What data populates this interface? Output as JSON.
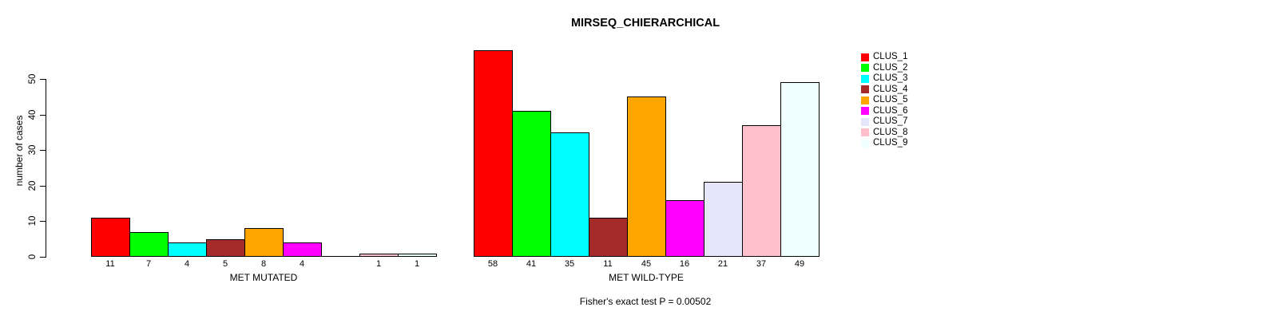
{
  "title": "MIRSEQ_CHIERARCHICAL",
  "chart_data": {
    "type": "bar",
    "title": "MIRSEQ_CHIERARCHICAL",
    "xlabel": "",
    "ylabel": "number of cases",
    "ylim": [
      0,
      50
    ],
    "yticks": [
      0,
      10,
      20,
      30,
      40,
      50
    ],
    "grid": false,
    "legend_position": "right",
    "series_labels": [
      "CLUS_1",
      "CLUS_2",
      "CLUS_3",
      "CLUS_4",
      "CLUS_5",
      "CLUS_6",
      "CLUS_7",
      "CLUS_8",
      "CLUS_9"
    ],
    "colors": [
      "#ff0000",
      "#00ff00",
      "#00ffff",
      "#a52a2a",
      "#ffa500",
      "#ff00ff",
      "#e6e6fa",
      "#ffc0cb",
      "#f0ffff"
    ],
    "groups": [
      {
        "label": "MET MUTATED",
        "values": [
          11,
          7,
          4,
          5,
          8,
          4,
          0,
          1,
          1
        ]
      },
      {
        "label": "MET WILD-TYPE",
        "values": [
          58,
          41,
          35,
          11,
          45,
          16,
          21,
          37,
          49
        ]
      }
    ],
    "bar_value_labels_shown_for_zero": false,
    "annotation": "Fisher's exact test P = 0.00502"
  }
}
